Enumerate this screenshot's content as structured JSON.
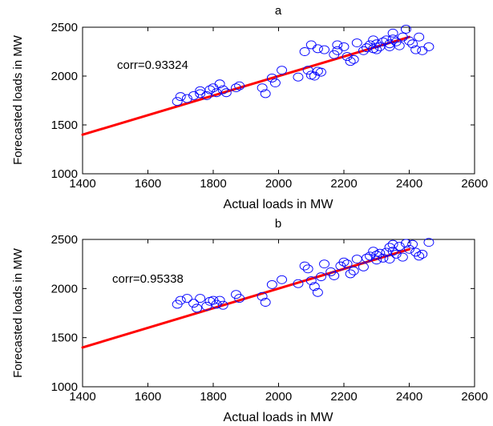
{
  "chart_data": [
    {
      "type": "scatter",
      "title": "a",
      "xlabel": "Actual loads in MW",
      "ylabel": "Forecasted loads in MW",
      "xlim": [
        1400,
        2600
      ],
      "ylim": [
        1000,
        2500
      ],
      "xticks": [
        "1400",
        "1600",
        "1800",
        "2000",
        "2200",
        "2400",
        "2600"
      ],
      "yticks": [
        "1000",
        "1500",
        "2000",
        "2500"
      ],
      "annotation": "corr=0.93324",
      "marker_color": "#0000ff",
      "fit_color": "#ff0000",
      "fit_line": {
        "x": [
          1400,
          2400
        ],
        "y": [
          1400,
          2400
        ]
      },
      "series": [
        {
          "marker": "circle",
          "points": [
            [
              1690,
              1740
            ],
            [
              1700,
              1790
            ],
            [
              1720,
              1770
            ],
            [
              1740,
              1800
            ],
            [
              1760,
              1850
            ],
            [
              1760,
              1820
            ],
            [
              1780,
              1800
            ],
            [
              1790,
              1860
            ],
            [
              1800,
              1880
            ],
            [
              1810,
              1830
            ],
            [
              1820,
              1920
            ],
            [
              1830,
              1860
            ],
            [
              1840,
              1830
            ],
            [
              1870,
              1880
            ],
            [
              1880,
              1900
            ],
            [
              1950,
              1880
            ],
            [
              1960,
              1820
            ],
            [
              1980,
              1980
            ],
            [
              1990,
              1930
            ],
            [
              2010,
              2060
            ],
            [
              2060,
              1990
            ],
            [
              2090,
              2060
            ],
            [
              2100,
              2010
            ],
            [
              2110,
              2000
            ],
            [
              2120,
              2050
            ],
            [
              2130,
              2040
            ],
            [
              2080,
              2250
            ],
            [
              2100,
              2320
            ],
            [
              2120,
              2280
            ],
            [
              2140,
              2270
            ],
            [
              2170,
              2220
            ],
            [
              2180,
              2260
            ],
            [
              2180,
              2320
            ],
            [
              2200,
              2300
            ],
            [
              2210,
              2200
            ],
            [
              2220,
              2150
            ],
            [
              2230,
              2170
            ],
            [
              2240,
              2340
            ],
            [
              2260,
              2260
            ],
            [
              2270,
              2290
            ],
            [
              2280,
              2320
            ],
            [
              2290,
              2370
            ],
            [
              2290,
              2280
            ],
            [
              2300,
              2330
            ],
            [
              2300,
              2270
            ],
            [
              2310,
              2300
            ],
            [
              2320,
              2350
            ],
            [
              2330,
              2370
            ],
            [
              2340,
              2330
            ],
            [
              2340,
              2300
            ],
            [
              2350,
              2440
            ],
            [
              2350,
              2380
            ],
            [
              2360,
              2350
            ],
            [
              2370,
              2310
            ],
            [
              2380,
              2400
            ],
            [
              2390,
              2480
            ],
            [
              2400,
              2360
            ],
            [
              2410,
              2330
            ],
            [
              2420,
              2270
            ],
            [
              2430,
              2400
            ],
            [
              2440,
              2260
            ],
            [
              2460,
              2300
            ]
          ]
        }
      ]
    },
    {
      "type": "scatter",
      "title": "b",
      "xlabel": "Actual loads in MW",
      "ylabel": "Forecasted loads in MW",
      "xlim": [
        1400,
        2600
      ],
      "ylim": [
        1000,
        2500
      ],
      "xticks": [
        "1400",
        "1600",
        "1800",
        "2000",
        "2200",
        "2400",
        "2600"
      ],
      "yticks": [
        "1000",
        "1500",
        "2000",
        "2500"
      ],
      "annotation": "corr=0.95338",
      "marker_color": "#0000ff",
      "fit_color": "#ff0000",
      "fit_line": {
        "x": [
          1400,
          2400
        ],
        "y": [
          1400,
          2400
        ]
      },
      "series": [
        {
          "marker": "circle",
          "points": [
            [
              1690,
              1840
            ],
            [
              1700,
              1880
            ],
            [
              1720,
              1900
            ],
            [
              1740,
              1850
            ],
            [
              1750,
              1800
            ],
            [
              1760,
              1900
            ],
            [
              1780,
              1820
            ],
            [
              1790,
              1870
            ],
            [
              1800,
              1880
            ],
            [
              1810,
              1840
            ],
            [
              1820,
              1880
            ],
            [
              1830,
              1830
            ],
            [
              1870,
              1940
            ],
            [
              1880,
              1900
            ],
            [
              1950,
              1920
            ],
            [
              1960,
              1860
            ],
            [
              1980,
              2040
            ],
            [
              2010,
              2090
            ],
            [
              2060,
              2050
            ],
            [
              2080,
              2230
            ],
            [
              2090,
              2200
            ],
            [
              2100,
              2080
            ],
            [
              2110,
              2020
            ],
            [
              2120,
              1960
            ],
            [
              2130,
              2120
            ],
            [
              2140,
              2250
            ],
            [
              2160,
              2170
            ],
            [
              2170,
              2130
            ],
            [
              2190,
              2230
            ],
            [
              2200,
              2270
            ],
            [
              2210,
              2250
            ],
            [
              2220,
              2150
            ],
            [
              2230,
              2180
            ],
            [
              2240,
              2300
            ],
            [
              2260,
              2220
            ],
            [
              2270,
              2310
            ],
            [
              2280,
              2330
            ],
            [
              2290,
              2380
            ],
            [
              2300,
              2340
            ],
            [
              2300,
              2290
            ],
            [
              2310,
              2360
            ],
            [
              2320,
              2310
            ],
            [
              2330,
              2370
            ],
            [
              2340,
              2420
            ],
            [
              2340,
              2300
            ],
            [
              2350,
              2450
            ],
            [
              2350,
              2380
            ],
            [
              2360,
              2350
            ],
            [
              2370,
              2430
            ],
            [
              2380,
              2320
            ],
            [
              2390,
              2460
            ],
            [
              2400,
              2400
            ],
            [
              2410,
              2450
            ],
            [
              2420,
              2370
            ],
            [
              2430,
              2330
            ],
            [
              2440,
              2350
            ],
            [
              2460,
              2470
            ]
          ]
        }
      ]
    }
  ]
}
